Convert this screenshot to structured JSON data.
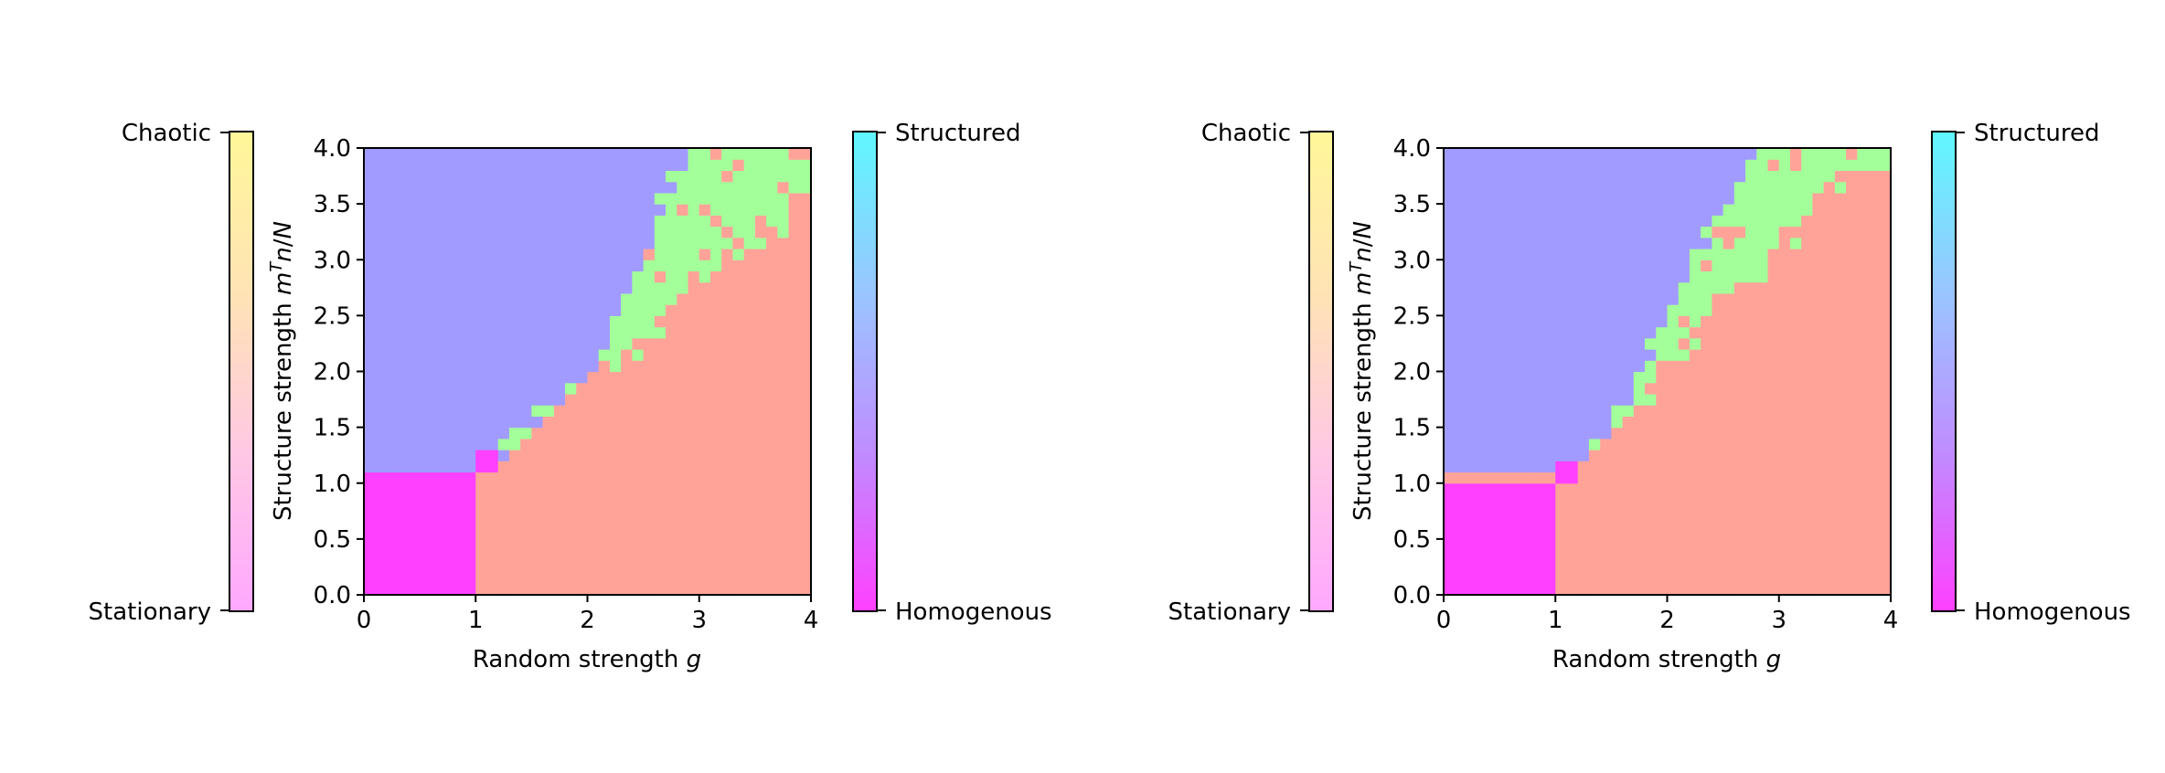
{
  "chart_data": [
    {
      "type": "heatmap",
      "xlabel": "Random strength g",
      "ylabel": "Structure strength mTn/N",
      "xlim": [
        0,
        4
      ],
      "ylim": [
        0,
        4
      ],
      "x_ticks": [
        "0",
        "1",
        "2",
        "3",
        "4"
      ],
      "y_ticks": [
        "0.0",
        "0.5",
        "1.0",
        "1.5",
        "2.0",
        "2.5",
        "3.0",
        "3.5",
        "4.0"
      ],
      "regions": [
        {
          "color": "#ff40ff",
          "description": "stationary homogenous",
          "g_max": 1.05,
          "m_max": 1.12
        },
        {
          "color": "#a29bff",
          "description": "stationary structured",
          "boundary_points": [
            [
              0,
              1.12
            ],
            [
              1.15,
              1.12
            ],
            [
              1.6,
              1.55
            ],
            [
              2.1,
              2.0
            ],
            [
              2.25,
              2.5
            ],
            [
              2.5,
              3.0
            ],
            [
              2.7,
              3.5
            ],
            [
              2.95,
              4.0
            ]
          ]
        },
        {
          "color": "#a3ff99",
          "description": "chaotic structured",
          "boundary_points": [
            [
              2.0,
              2.0
            ],
            [
              2.5,
              2.3
            ],
            [
              3.0,
              2.9
            ],
            [
              3.6,
              3.3
            ],
            [
              4.0,
              3.7
            ]
          ]
        },
        {
          "color": "#ffa399",
          "description": "chaotic homogenous"
        }
      ],
      "left_colorbar": {
        "top_label": "Chaotic",
        "bottom_label": "Stationary",
        "colors": [
          "#ffa8ff",
          "#ffc8e4",
          "#ffe3b5",
          "#fff799"
        ]
      },
      "right_colorbar": {
        "top_label": "Structured",
        "bottom_label": "Homogenous",
        "colors": [
          "#ff40ff",
          "#c08cff",
          "#9ac5ff",
          "#5ff8ff"
        ]
      }
    },
    {
      "type": "heatmap",
      "xlabel": "Random strength g",
      "ylabel": "Structure strength mTn/N",
      "xlim": [
        0,
        4
      ],
      "ylim": [
        0,
        4
      ],
      "x_ticks": [
        "0",
        "1",
        "2",
        "3",
        "4"
      ],
      "y_ticks": [
        "0.0",
        "0.5",
        "1.0",
        "1.5",
        "2.0",
        "2.5",
        "3.0",
        "3.5",
        "4.0"
      ],
      "regions": [
        {
          "color": "#ff40ff",
          "description": "stationary homogenous",
          "g_max": 1.05,
          "m_max": 1.05
        },
        {
          "color": "#a29bff",
          "description": "stationary structured",
          "boundary_points": [
            [
              0,
              1.05
            ],
            [
              1.15,
              1.12
            ],
            [
              1.45,
              1.4
            ],
            [
              1.8,
              2.0
            ],
            [
              2.0,
              2.5
            ],
            [
              2.3,
              3.0
            ],
            [
              2.55,
              3.5
            ],
            [
              2.8,
              4.0
            ]
          ]
        },
        {
          "color": "#a3ff99",
          "description": "chaotic structured",
          "boundary_points": [
            [
              1.5,
              1.4
            ],
            [
              2.0,
              2.1
            ],
            [
              2.5,
              2.6
            ],
            [
              3.0,
              3.1
            ],
            [
              3.6,
              3.9
            ]
          ]
        },
        {
          "color": "#ffa399",
          "description": "chaotic homogenous"
        }
      ],
      "left_colorbar": {
        "top_label": "Chaotic",
        "bottom_label": "Stationary",
        "colors": [
          "#ffa8ff",
          "#ffc8e4",
          "#ffe3b5",
          "#fff799"
        ]
      },
      "right_colorbar": {
        "top_label": "Structured",
        "bottom_label": "Homogenous",
        "colors": [
          "#ff40ff",
          "#c08cff",
          "#9ac5ff",
          "#5ff8ff"
        ]
      }
    }
  ]
}
